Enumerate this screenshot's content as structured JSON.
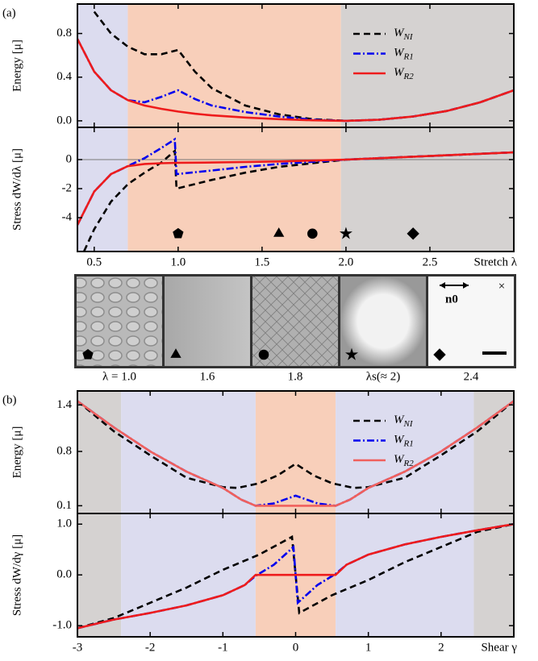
{
  "chart_data": [
    {
      "type": "line",
      "panel_label": "(a)",
      "ylabel": "Energy [μ]",
      "xlim": [
        0.4,
        3.0
      ],
      "ylim": [
        -0.06,
        1.07
      ],
      "xticks": [
        0.5,
        1,
        1.5,
        2,
        2.5
      ],
      "yticks": [
        {
          "value": 0,
          "label": "0.0"
        },
        0.4,
        0.8
      ],
      "legend": "upper right",
      "regions": [
        {
          "from": 0.4,
          "to": 0.7,
          "color": "#dcdcef"
        },
        {
          "from": 0.7,
          "to": 1.97,
          "color": "#f8cfba"
        },
        {
          "from": 1.97,
          "to": 3.0,
          "color": "#d5d2d1"
        }
      ],
      "series": [
        {
          "name": "WNI",
          "color": "#000000",
          "dash": "dashed",
          "x": [
            0.4,
            0.5,
            0.6,
            0.7,
            0.8,
            0.9,
            1.0,
            1.1,
            1.2,
            1.4,
            1.6,
            1.8,
            2.0,
            2.2,
            2.4,
            2.6,
            2.8,
            3.0
          ],
          "values": [
            null,
            1.0,
            0.8,
            0.68,
            0.61,
            0.61,
            0.65,
            0.45,
            0.3,
            0.14,
            0.06,
            0.015,
            0,
            0.01,
            0.04,
            0.09,
            0.17,
            0.28
          ]
        },
        {
          "name": "WR1",
          "color": "#0000ee",
          "dash": "dashdot",
          "x": [
            0.4,
            0.5,
            0.6,
            0.7,
            0.8,
            0.9,
            1.0,
            1.1,
            1.2,
            1.4,
            1.6,
            1.8,
            2.0,
            2.2,
            2.4,
            2.6,
            2.8,
            3.0
          ],
          "values": [
            0.75,
            0.45,
            0.28,
            0.19,
            0.17,
            0.22,
            0.28,
            0.2,
            0.14,
            0.08,
            0.04,
            0.01,
            0,
            0.01,
            0.04,
            0.09,
            0.17,
            0.28
          ]
        },
        {
          "name": "WR2",
          "color": "#ee1c1c",
          "dash": "solid",
          "x": [
            0.4,
            0.5,
            0.6,
            0.7,
            0.8,
            0.9,
            1.0,
            1.1,
            1.2,
            1.4,
            1.6,
            1.8,
            2.0,
            2.2,
            2.4,
            2.6,
            2.8,
            3.0
          ],
          "values": [
            0.75,
            0.45,
            0.28,
            0.19,
            0.14,
            0.11,
            0.085,
            0.065,
            0.05,
            0.03,
            0.015,
            0.005,
            0,
            0.01,
            0.04,
            0.09,
            0.17,
            0.28
          ]
        }
      ]
    },
    {
      "type": "line",
      "ylabel": "Stress dW/dλ [μ]",
      "xlabel": "Stretch λ",
      "xlim": [
        0.4,
        3.0
      ],
      "ylim": [
        -6.33,
        2.22
      ],
      "xticks": [
        0.5,
        {
          "value": 1,
          "label": "1.0"
        },
        1.5,
        {
          "value": 2,
          "label": "2.0"
        },
        2.5
      ],
      "yticks": [
        0,
        -2,
        -4
      ],
      "hline": 0,
      "regions": [
        {
          "from": 0.4,
          "to": 0.7,
          "color": "#dcdcef"
        },
        {
          "from": 0.7,
          "to": 1.97,
          "color": "#f8cfba"
        },
        {
          "from": 1.97,
          "to": 3.0,
          "color": "#d5d2d1"
        }
      ],
      "series": [
        {
          "color": "#000000",
          "dash": "dashed",
          "x": [
            0.44,
            0.5,
            0.6,
            0.7,
            0.8,
            0.9,
            0.98,
            0.99,
            1.2,
            1.4,
            1.6,
            1.8,
            2.0,
            2.2,
            2.4,
            2.6,
            2.8,
            3.0
          ],
          "values": [
            -6.3,
            -4.8,
            -2.9,
            -1.7,
            -0.9,
            -0.2,
            0.6,
            -2.0,
            -1.4,
            -0.9,
            -0.5,
            -0.25,
            0,
            0.1,
            0.2,
            0.3,
            0.4,
            0.5
          ]
        },
        {
          "color": "#0000ee",
          "dash": "dashdot",
          "x": [
            0.4,
            0.5,
            0.6,
            0.7,
            0.8,
            0.9,
            0.98,
            0.99,
            1.2,
            1.4,
            1.6,
            1.8,
            2.0,
            2.2,
            2.4,
            2.6,
            2.8,
            3.0
          ],
          "values": [
            -4.5,
            -2.2,
            -1.0,
            -0.45,
            0.1,
            0.8,
            1.4,
            -1.0,
            -0.75,
            -0.5,
            -0.3,
            -0.15,
            0,
            0.1,
            0.2,
            0.3,
            0.4,
            0.5
          ]
        },
        {
          "color": "#ee1c1c",
          "dash": "solid",
          "x": [
            0.4,
            0.5,
            0.6,
            0.7,
            0.8,
            0.9,
            1.0,
            1.2,
            1.4,
            1.6,
            1.8,
            2.0,
            2.2,
            2.4,
            2.6,
            2.8,
            3.0
          ],
          "values": [
            -4.5,
            -2.2,
            -1.0,
            -0.45,
            -0.3,
            -0.25,
            -0.22,
            -0.2,
            -0.17,
            -0.13,
            -0.07,
            0,
            0.1,
            0.2,
            0.3,
            0.4,
            0.5
          ]
        }
      ],
      "markers": [
        {
          "x": 1.0,
          "y": -5.1,
          "shape": "pentagon"
        },
        {
          "x": 1.6,
          "y": -5.1,
          "shape": "triangle"
        },
        {
          "x": 1.8,
          "y": -5.1,
          "shape": "circle"
        },
        {
          "x": 2.0,
          "y": -5.1,
          "shape": "star"
        },
        {
          "x": 2.4,
          "y": -5.1,
          "shape": "diamond"
        }
      ]
    },
    {
      "type": "line",
      "panel_label": "(b)",
      "ylabel": "Energy [μ]",
      "xlim": [
        -3,
        3
      ],
      "ylim": [
        0.0,
        1.58
      ],
      "xticks": [
        -3,
        -2,
        -1,
        0,
        1,
        2
      ],
      "yticks": [
        1.4,
        0.8,
        0.1
      ],
      "legend": "upper right",
      "regions": [
        {
          "from": -3,
          "to": -2.4,
          "color": "#d5d2d1"
        },
        {
          "from": -2.4,
          "to": -0.55,
          "color": "#dcdcef"
        },
        {
          "from": -0.55,
          "to": 0.55,
          "color": "#f8cfba"
        },
        {
          "from": 0.55,
          "to": 2.45,
          "color": "#dcdcef"
        },
        {
          "from": 2.45,
          "to": 3,
          "color": "#d5d2d1"
        }
      ],
      "series": [
        {
          "name": "WNI",
          "color": "#000000",
          "dash": "dashed",
          "x": [
            -3,
            -2.5,
            -2,
            -1.5,
            -1,
            -0.8,
            -0.5,
            -0.25,
            0,
            0.25,
            0.5,
            0.8,
            1,
            1.5,
            2,
            2.5,
            3
          ],
          "values": [
            1.45,
            1.06,
            0.75,
            0.46,
            0.34,
            0.33,
            0.39,
            0.49,
            0.64,
            0.49,
            0.39,
            0.33,
            0.34,
            0.46,
            0.75,
            1.06,
            1.45
          ]
        },
        {
          "name": "WR1",
          "color": "#0000ee",
          "dash": "dashdot",
          "x": [
            -3,
            -2.5,
            -2,
            -1.5,
            -1,
            -0.75,
            -0.55,
            -0.3,
            0,
            0.3,
            0.55,
            0.75,
            1,
            1.5,
            2,
            2.5,
            3
          ],
          "values": [
            1.45,
            1.11,
            0.8,
            0.54,
            0.33,
            0.18,
            0.1,
            0.13,
            0.23,
            0.13,
            0.1,
            0.18,
            0.33,
            0.54,
            0.8,
            1.11,
            1.45
          ]
        },
        {
          "name": "WR2",
          "color": "#f0605c",
          "dash": "solid",
          "x": [
            -3,
            -2.5,
            -2,
            -1.5,
            -1,
            -0.75,
            -0.55,
            -0.3,
            0,
            0.3,
            0.55,
            0.75,
            1,
            1.5,
            2,
            2.5,
            3
          ],
          "values": [
            1.45,
            1.11,
            0.8,
            0.54,
            0.33,
            0.18,
            0.1,
            0.1,
            0.1,
            0.1,
            0.1,
            0.18,
            0.33,
            0.54,
            0.8,
            1.11,
            1.45
          ]
        }
      ]
    },
    {
      "type": "line",
      "ylabel": "Stress dW/dγ [μ]",
      "xlabel": "Shear γ",
      "xlim": [
        -3,
        3
      ],
      "ylim": [
        -1.22,
        1.21
      ],
      "xticks": [
        -3,
        -2,
        -1,
        0,
        1,
        2
      ],
      "yticks": [
        {
          "value": 1,
          "label": "1.0"
        },
        {
          "value": 0,
          "label": "0.0"
        },
        {
          "value": -1,
          "label": "-1.0"
        }
      ],
      "regions": [
        {
          "from": -3,
          "to": -2.4,
          "color": "#d5d2d1"
        },
        {
          "from": -2.4,
          "to": -0.55,
          "color": "#dcdcef"
        },
        {
          "from": -0.55,
          "to": 0.55,
          "color": "#f8cfba"
        },
        {
          "from": 0.55,
          "to": 2.45,
          "color": "#dcdcef"
        },
        {
          "from": 2.45,
          "to": 3,
          "color": "#d5d2d1"
        }
      ],
      "series": [
        {
          "color": "#000000",
          "dash": "dashed",
          "x": [
            -3,
            -2.5,
            -2,
            -1.5,
            -1,
            -0.5,
            -0.05,
            0.05,
            0.5,
            1,
            1.5,
            2,
            2.5,
            3
          ],
          "values": [
            -1.05,
            -0.85,
            -0.55,
            -0.25,
            0.1,
            0.4,
            0.75,
            -0.75,
            -0.4,
            -0.1,
            0.25,
            0.55,
            0.85,
            1.0
          ]
        },
        {
          "color": "#0000ee",
          "dash": "dashdot",
          "x": [
            -3,
            -2.5,
            -2,
            -1.5,
            -1,
            -0.7,
            -0.55,
            -0.3,
            -0.03,
            0.03,
            0.3,
            0.55,
            0.7,
            1,
            1.5,
            2,
            2.5,
            3
          ],
          "values": [
            -1.05,
            -0.88,
            -0.75,
            -0.6,
            -0.4,
            -0.2,
            -0.02,
            0.2,
            0.55,
            -0.55,
            -0.2,
            0.02,
            0.2,
            0.4,
            0.6,
            0.75,
            0.88,
            1.0
          ]
        },
        {
          "color": "#ee1c1c",
          "dash": "solid",
          "x": [
            -3,
            -2.5,
            -2,
            -1.5,
            -1,
            -0.7,
            -0.55,
            0,
            0.55,
            0.7,
            1,
            1.5,
            2,
            2.5,
            3
          ],
          "values": [
            -1.05,
            -0.88,
            -0.75,
            -0.6,
            -0.4,
            -0.2,
            0,
            0,
            0,
            0.2,
            0.4,
            0.6,
            0.75,
            0.88,
            1.0
          ]
        }
      ]
    }
  ],
  "image_strip": {
    "captions": [
      "λ = 1.0",
      "1.6",
      "1.8",
      "λs(≈ 2)",
      "2.4"
    ],
    "director_label": "n0",
    "cross_symbol": "×"
  }
}
